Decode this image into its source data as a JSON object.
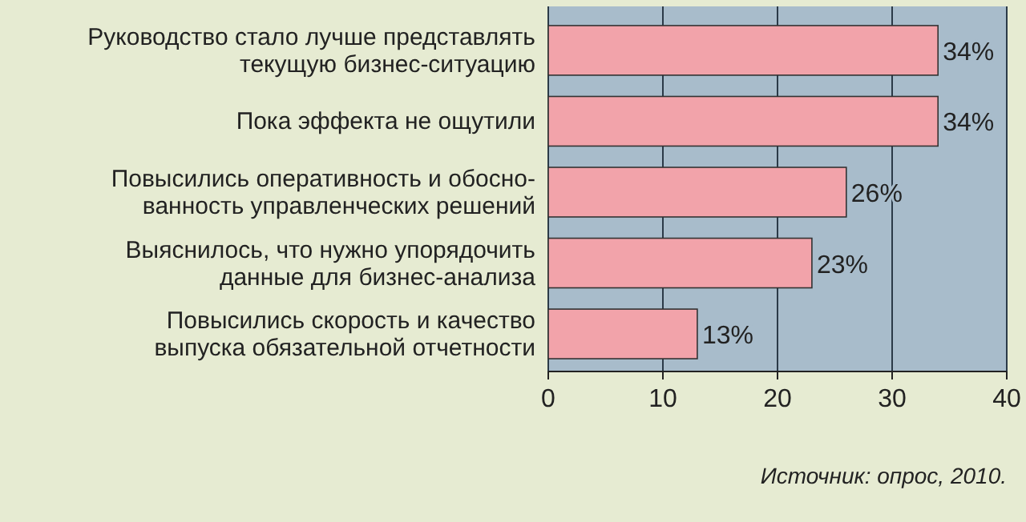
{
  "chart_data": {
    "type": "bar",
    "orientation": "horizontal",
    "categories": [
      "Руководство стало лучше представлять\nтекущую бизнес-ситуацию",
      "Пока эффекта не ощутили",
      "Повысились оперативность и обосно-\nванность управленческих решений",
      "Выяснилось, что нужно упорядочить\nданные для бизнес-анализа",
      "Повысились скорость и качество\nвыпуска обязательной отчетности"
    ],
    "values": [
      34,
      34,
      26,
      23,
      13
    ],
    "value_labels": [
      "34%",
      "34%",
      "26%",
      "23%",
      "13%"
    ],
    "color": "#f2a3aa",
    "xlim": [
      0,
      40
    ],
    "xticks": [
      0,
      10,
      20,
      30,
      40
    ],
    "grid": "x",
    "annotations": [
      "Источник: опрос, 2010."
    ]
  }
}
